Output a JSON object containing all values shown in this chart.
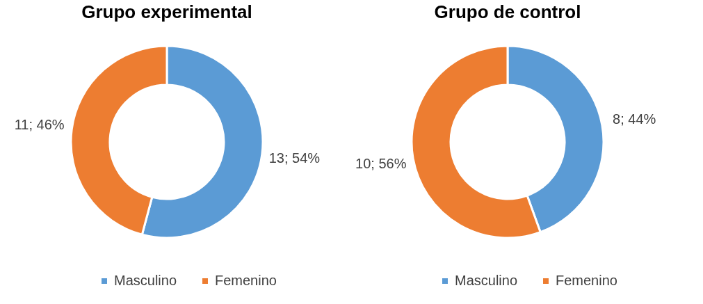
{
  "chart_data": [
    {
      "type": "donut",
      "title": "Grupo experimental",
      "categories": [
        "Masculino",
        "Femenino"
      ],
      "values": [
        13,
        11
      ],
      "colors": [
        "#5b9bd5",
        "#ed7d31"
      ],
      "value_labels": [
        "13; 54%",
        "11; 46%"
      ],
      "legend": "bottom"
    },
    {
      "type": "donut",
      "title": "Grupo de control",
      "categories": [
        "Masculino",
        "Femenino"
      ],
      "values": [
        8,
        10
      ],
      "colors": [
        "#5b9bd5",
        "#ed7d31"
      ],
      "value_labels": [
        "8; 44%",
        "10; 56%"
      ],
      "legend": "bottom"
    }
  ]
}
